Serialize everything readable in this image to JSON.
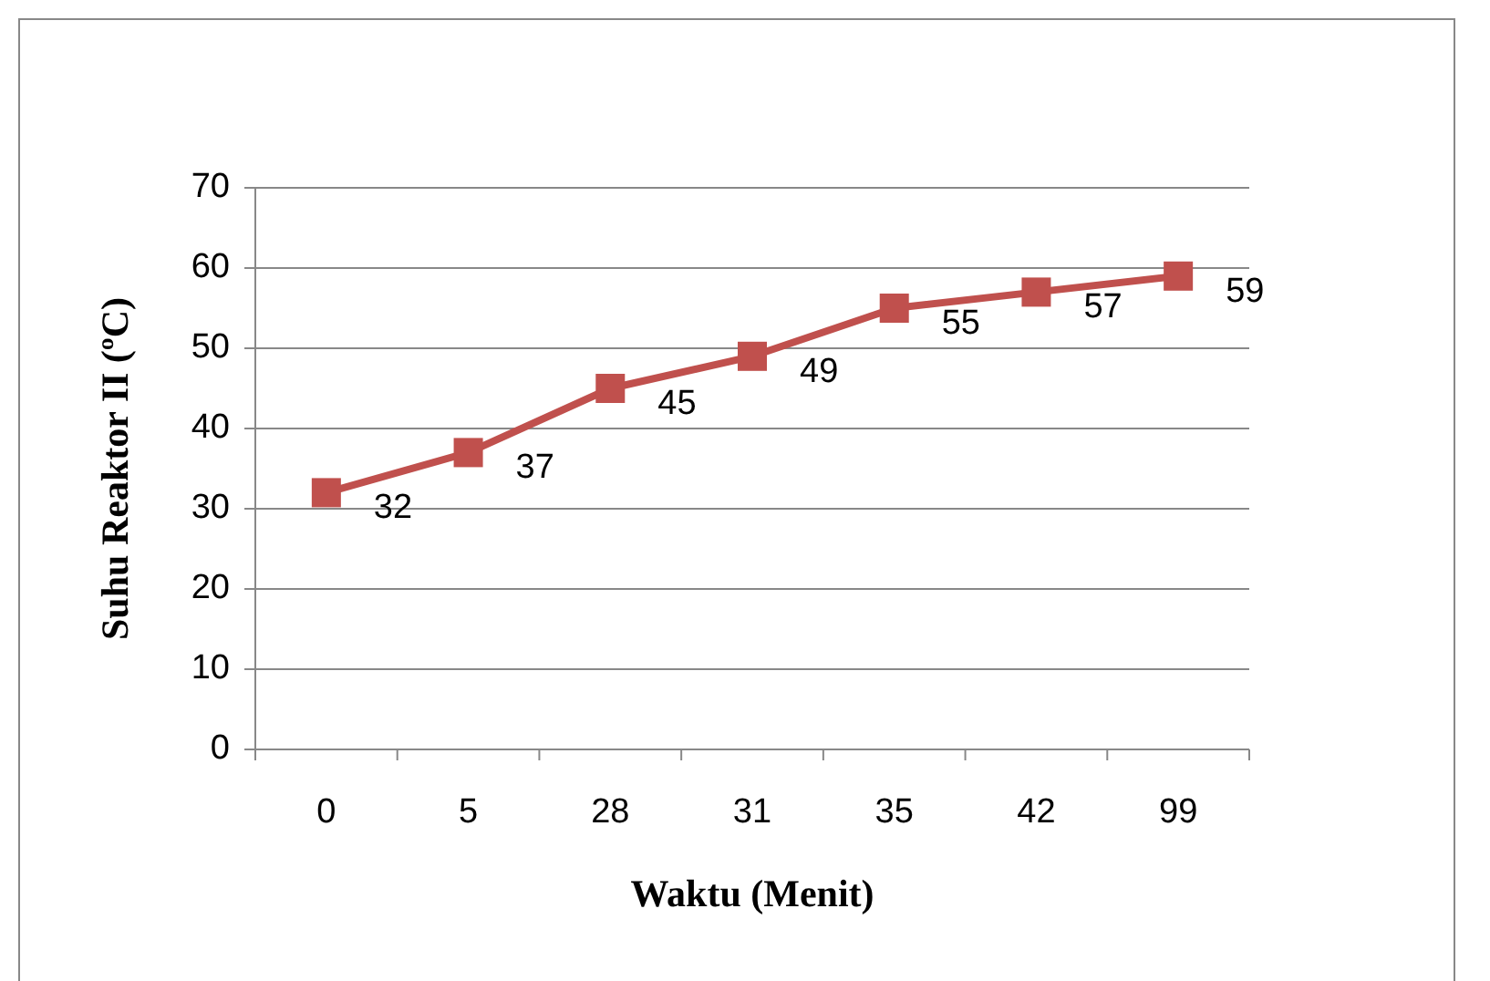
{
  "chart_data": {
    "type": "line",
    "xlabel": "Waktu (Menit)",
    "ylabel": "Suhu Reaktor II (ºC)",
    "categories": [
      "0",
      "5",
      "28",
      "31",
      "35",
      "42",
      "99"
    ],
    "series": [
      {
        "color": "#c0504d",
        "values": [
          32,
          37,
          45,
          49,
          55,
          57,
          59
        ]
      }
    ],
    "ylim": [
      0,
      70
    ],
    "yticks": [
      0,
      10,
      20,
      30,
      40,
      50,
      60,
      70
    ],
    "grid": "y",
    "marker": "square",
    "line_style": "solid",
    "data_labels": true
  }
}
